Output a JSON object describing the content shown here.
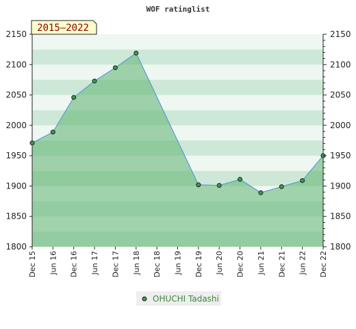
{
  "chart_data": {
    "type": "area",
    "title": "WOF ratinglist",
    "period_label": "2015–2022",
    "x_labels": [
      "Dec 15",
      "Jun 16",
      "Dec 16",
      "Jun 17",
      "Dec 17",
      "Jun 18",
      "Dec 18",
      "Jun 19",
      "Dec 19",
      "Jun 20",
      "Dec 20",
      "Jun 21",
      "Dec 21",
      "Jun 22",
      "Dec 22"
    ],
    "ylim": [
      1800,
      2150
    ],
    "y_ticks": [
      1800,
      1850,
      1900,
      1950,
      2000,
      2050,
      2100,
      2150
    ],
    "series": [
      {
        "name": "OHUCHI Tadashi",
        "x": [
          "Dec 15",
          "Jun 16",
          "Dec 16",
          "Jun 17",
          "Dec 17",
          "Jun 18",
          "Dec 19",
          "Jun 20",
          "Dec 20",
          "Jun 21",
          "Dec 21",
          "Jun 22",
          "Dec 22"
        ],
        "values": [
          1971,
          1989,
          2046,
          2073,
          2095,
          2119,
          1902,
          1901,
          1911,
          1889,
          1899,
          1909,
          1950
        ]
      }
    ],
    "grid": true,
    "legend_position": "bottom-center",
    "colors": {
      "line": "#5b9bd5",
      "marker_fill": "#3a9a4a",
      "area": "#5cb26f",
      "band_dark": "#cde8d6",
      "band_light": "#eef7f1",
      "period_bg": "#ffffcc"
    }
  }
}
